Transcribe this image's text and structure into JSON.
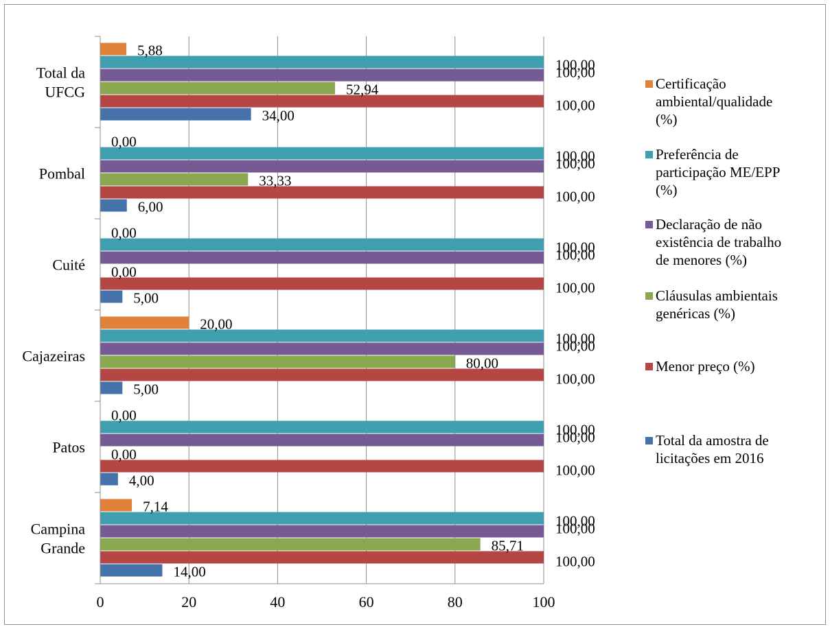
{
  "chart_data": {
    "type": "bar",
    "orientation": "horizontal",
    "title": "",
    "xlabel": "",
    "ylabel": "",
    "xlim": [
      0,
      100
    ],
    "x_ticks": [
      "0",
      "20",
      "40",
      "60",
      "80",
      "100"
    ],
    "grid": "vertical major gridlines",
    "legend_position": "right",
    "categories": [
      "Total da UFCG",
      "Pombal",
      "Cuité",
      "Cajazeiras",
      "Patos",
      "Campina Grande"
    ],
    "category_lines": [
      [
        "Total da",
        "UFCG"
      ],
      [
        "Pombal"
      ],
      [
        "Cuité"
      ],
      [
        "Cajazeiras"
      ],
      [
        "Patos"
      ],
      [
        "Campina",
        "Grande"
      ]
    ],
    "series": [
      {
        "name": "Certificação ambiental/qualidade (%)",
        "legend_lines": [
          "Certificação",
          "ambiental/qualidade",
          "(%)"
        ],
        "color": "#e0823a",
        "values": [
          5.88,
          0.0,
          0.0,
          20.0,
          0.0,
          7.14
        ],
        "labels": [
          "5,88",
          "0,00",
          "0,00",
          "20,00",
          "0,00",
          "7,14"
        ]
      },
      {
        "name": "Preferência de participação ME/EPP (%)",
        "legend_lines": [
          "Preferência de",
          "participação ME/EPP",
          "(%)"
        ],
        "color": "#3f9fae",
        "values": [
          100.0,
          100.0,
          100.0,
          100.0,
          100.0,
          100.0
        ],
        "labels": [
          "100,00",
          "100,00",
          "100,00",
          "100,00",
          "100,00",
          "100,00"
        ]
      },
      {
        "name": "Declaração de não existência de trabalho de menores (%)",
        "legend_lines": [
          "Declaração de não",
          "existência de trabalho",
          "de menores (%)"
        ],
        "color": "#765a94",
        "values": [
          100.0,
          100.0,
          100.0,
          100.0,
          100.0,
          100.0
        ],
        "labels": [
          "100,00",
          "100,00",
          "100,00",
          "100,00",
          "100,00",
          "100,00"
        ]
      },
      {
        "name": "Cláusulas ambientais genéricas (%)",
        "legend_lines": [
          "Cláusulas ambientais",
          "genéricas (%)"
        ],
        "color": "#8aa84f",
        "values": [
          52.94,
          33.33,
          0.0,
          80.0,
          0.0,
          85.71
        ],
        "labels": [
          "52,94",
          "33,33",
          "0,00",
          "80,00",
          "0,00",
          "85,71"
        ]
      },
      {
        "name": "Menor preço (%)",
        "legend_lines": [
          "Menor preço (%)"
        ],
        "color": "#b44644",
        "values": [
          100.0,
          100.0,
          100.0,
          100.0,
          100.0,
          100.0
        ],
        "labels": [
          "100,00",
          "100,00",
          "100,00",
          "100,00",
          "100,00",
          "100,00"
        ]
      },
      {
        "name": "Total da amostra de licitações em 2016",
        "legend_lines": [
          "Total da amostra de",
          "licitações em 2016"
        ],
        "color": "#4472a9",
        "values": [
          34.0,
          6.0,
          5.0,
          5.0,
          4.0,
          14.0
        ],
        "labels": [
          "34,00",
          "6,00",
          "5,00",
          "5,00",
          "4,00",
          "14,00"
        ]
      }
    ]
  }
}
